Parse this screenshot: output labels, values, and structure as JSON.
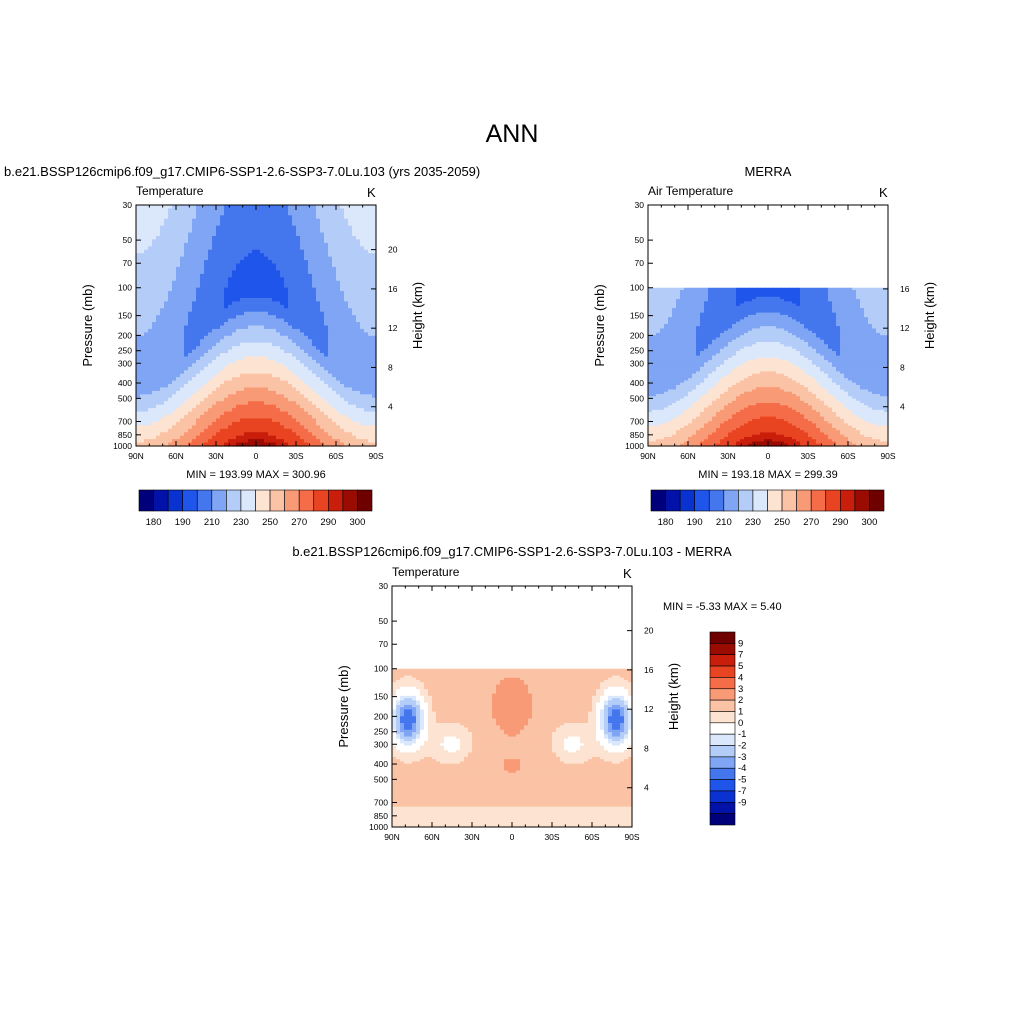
{
  "page": {
    "season": "ANN"
  },
  "colors": {
    "abs_fill": [
      "#00007a",
      "#0212a8",
      "#0a32d0",
      "#1f55ea",
      "#4477ee",
      "#7fa5f4",
      "#b4cdf8",
      "#dbe8fb",
      "#fde4d2",
      "#fbc3a5",
      "#f99a76",
      "#f56d48",
      "#e84422",
      "#c91e0b",
      "#9a0b02",
      "#6e0000"
    ],
    "diff_fill": [
      "#00007a",
      "#0212a8",
      "#0a32d0",
      "#1f55ea",
      "#4477ee",
      "#7fa5f4",
      "#b4cdf8",
      "#dbe8fb",
      "#ffffff",
      "#fde4d2",
      "#fbc3a5",
      "#f99a76",
      "#f56d48",
      "#e84422",
      "#c91e0b",
      "#9a0b02",
      "#6e0000"
    ]
  },
  "chart_data": [
    {
      "id": "model",
      "type": "heatmap",
      "title": "b.e21.BSSP126cmip6.f09_g17.CMIP6-SSP1-2.6-SSP3-7.0Lu.103 (yrs 2035-2059)",
      "left_label": "Temperature",
      "units": "K",
      "xlabel": "",
      "ylabel": "Pressure (mb)",
      "y2label": "Height (km)",
      "x_ticks": [
        "90N",
        "60N",
        "30N",
        "0",
        "30S",
        "60S",
        "90S"
      ],
      "y_ticks": [
        "30",
        "50",
        "70",
        "100",
        "150",
        "200",
        "250",
        "300",
        "400",
        "500",
        "700",
        "850",
        "1000"
      ],
      "y2_ticks": [
        "4",
        "8",
        "12",
        "16",
        "20"
      ],
      "ylim": [
        1000,
        30
      ],
      "data_top_mb": 30,
      "stats": "MIN = 193.99  MAX = 300.96",
      "min": 193.99,
      "max": 300.96,
      "colorbar_labels": [
        "180",
        "190",
        "210",
        "230",
        "250",
        "270",
        "290",
        "300"
      ]
    },
    {
      "id": "obs",
      "type": "heatmap",
      "title": "MERRA",
      "left_label": "Air Temperature",
      "units": "K",
      "xlabel": "",
      "ylabel": "Pressure (mb)",
      "y2label": "Height (km)",
      "x_ticks": [
        "90N",
        "60N",
        "30N",
        "0",
        "30S",
        "60S",
        "90S"
      ],
      "y_ticks": [
        "30",
        "50",
        "70",
        "100",
        "150",
        "200",
        "250",
        "300",
        "400",
        "500",
        "700",
        "850",
        "1000"
      ],
      "y2_ticks": [
        "4",
        "8",
        "12",
        "16"
      ],
      "ylim": [
        1000,
        30
      ],
      "data_top_mb": 100,
      "stats": "MIN = 193.18  MAX = 299.39",
      "min": 193.18,
      "max": 299.39,
      "colorbar_labels": [
        "180",
        "190",
        "210",
        "230",
        "250",
        "270",
        "290",
        "300"
      ]
    },
    {
      "id": "diff",
      "type": "heatmap",
      "title": "b.e21.BSSP126cmip6.f09_g17.CMIP6-SSP1-2.6-SSP3-7.0Lu.103 - MERRA",
      "left_label": "Temperature",
      "units": "K",
      "xlabel": "",
      "ylabel": "Pressure (mb)",
      "y2label": "Height (km)",
      "x_ticks": [
        "90N",
        "60N",
        "30N",
        "0",
        "30S",
        "60S",
        "90S"
      ],
      "y_ticks": [
        "30",
        "50",
        "70",
        "100",
        "150",
        "200",
        "250",
        "300",
        "400",
        "500",
        "700",
        "850",
        "1000"
      ],
      "y2_ticks": [
        "4",
        "8",
        "12",
        "16",
        "20"
      ],
      "ylim": [
        1000,
        30
      ],
      "data_top_mb": 100,
      "stats": "MIN =  -5.33  MAX =   5.40",
      "min": -5.33,
      "max": 5.4,
      "colorbar_labels": [
        "9",
        "7",
        "5",
        "4",
        "3",
        "2",
        "1",
        "0",
        "-1",
        "-2",
        "-3",
        "-4",
        "-5",
        "-7",
        "-9"
      ]
    }
  ]
}
